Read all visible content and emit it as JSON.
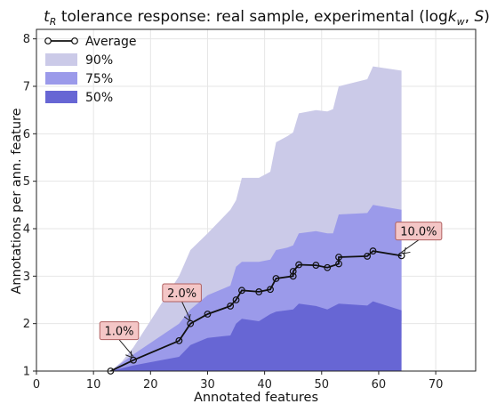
{
  "chart_data": {
    "type": "area",
    "title": "t_R tolerance response: real sample, experimental (logk_w, S)",
    "title_parts": {
      "t": "t",
      "sub_r": "R",
      "main": " tolerance response: real sample, experimental (log",
      "k": "k",
      "sub_w": "w",
      "comma": ", ",
      "s": "S",
      "close": ")"
    },
    "xlabel": "Annotated features",
    "ylabel": "Annotations per ann. feature",
    "xlim": [
      0,
      77
    ],
    "ylim": [
      1,
      8.2
    ],
    "xticks": [
      "0",
      "10",
      "20",
      "30",
      "40",
      "50",
      "60",
      "70"
    ],
    "yticks": [
      "1",
      "2",
      "3",
      "4",
      "5",
      "6",
      "7",
      "8"
    ],
    "grid": true,
    "legend_position": "top-left",
    "colors": {
      "band90": "#cbcae8",
      "band75": "#9b9aea",
      "band50": "#6766d4",
      "line": "#111111",
      "annot_fill": "#f4c6c6",
      "annot_edge": "#b06060"
    },
    "series": [
      {
        "name": "Average",
        "kind": "line",
        "x": [
          13,
          17,
          25,
          27,
          30,
          34,
          35,
          36,
          39,
          41,
          42,
          45,
          45,
          46,
          49,
          51,
          53,
          53,
          58,
          59,
          64
        ],
        "y": [
          1.0,
          1.23,
          1.64,
          2.0,
          2.2,
          2.37,
          2.5,
          2.7,
          2.67,
          2.72,
          2.95,
          3.0,
          3.1,
          3.24,
          3.23,
          3.18,
          3.26,
          3.4,
          3.42,
          3.53,
          3.43
        ]
      },
      {
        "name": "90%",
        "kind": "band",
        "x": [
          13,
          15,
          17,
          25,
          27,
          30,
          34,
          35,
          36,
          39,
          41,
          42,
          44,
          45,
          46,
          49,
          51,
          52,
          53,
          58,
          59,
          64
        ],
        "low": [
          1.0,
          1.0,
          1.0,
          1.05,
          1.25,
          1.35,
          1.4,
          1.45,
          1.5,
          1.5,
          1.55,
          1.6,
          1.6,
          1.65,
          1.7,
          1.7,
          1.7,
          1.7,
          1.7,
          1.7,
          1.7,
          1.7
        ],
        "high": [
          1.0,
          1.2,
          1.5,
          3.0,
          3.55,
          3.9,
          4.4,
          4.6,
          5.07,
          5.07,
          5.2,
          5.82,
          5.95,
          6.03,
          6.43,
          6.5,
          6.47,
          6.52,
          7.0,
          7.15,
          7.42,
          7.33
        ]
      },
      {
        "name": "75%",
        "kind": "band",
        "x": [
          13,
          17,
          25,
          27,
          30,
          34,
          35,
          36,
          39,
          41,
          42,
          44,
          45,
          46,
          49,
          51,
          52,
          53,
          58,
          59,
          64
        ],
        "low": [
          1.0,
          1.05,
          1.25,
          1.4,
          1.5,
          1.6,
          1.65,
          1.75,
          1.8,
          1.85,
          1.9,
          1.95,
          2.0,
          2.0,
          2.0,
          2.05,
          2.05,
          2.1,
          2.1,
          2.1,
          2.05
        ],
        "high": [
          1.0,
          1.35,
          2.0,
          2.3,
          2.6,
          2.8,
          3.2,
          3.3,
          3.3,
          3.35,
          3.55,
          3.6,
          3.65,
          3.9,
          3.95,
          3.9,
          3.9,
          4.3,
          4.33,
          4.5,
          4.4
        ]
      },
      {
        "name": "50%",
        "kind": "band",
        "x": [
          13,
          17,
          25,
          27,
          30,
          34,
          35,
          36,
          39,
          41,
          42,
          45,
          46,
          49,
          51,
          53,
          58,
          59,
          64
        ],
        "low": [
          1.0,
          1.0,
          1.0,
          1.0,
          1.0,
          1.0,
          1.0,
          1.0,
          1.0,
          1.0,
          1.0,
          1.0,
          1.0,
          1.0,
          1.0,
          1.0,
          1.0,
          1.0,
          1.0
        ],
        "high": [
          1.0,
          1.12,
          1.3,
          1.55,
          1.7,
          1.75,
          2.0,
          2.1,
          2.05,
          2.2,
          2.25,
          2.3,
          2.42,
          2.37,
          2.3,
          2.42,
          2.38,
          2.47,
          2.28
        ]
      }
    ],
    "annotations": [
      {
        "text": "1.0%",
        "x": 17,
        "y": 1.23,
        "tx": 14.5,
        "ty": 1.85
      },
      {
        "text": "2.0%",
        "x": 27,
        "y": 2.0,
        "tx": 25.5,
        "ty": 2.65
      },
      {
        "text": "10.0%",
        "x": 64,
        "y": 3.43,
        "tx": 67,
        "ty": 3.95
      }
    ]
  }
}
